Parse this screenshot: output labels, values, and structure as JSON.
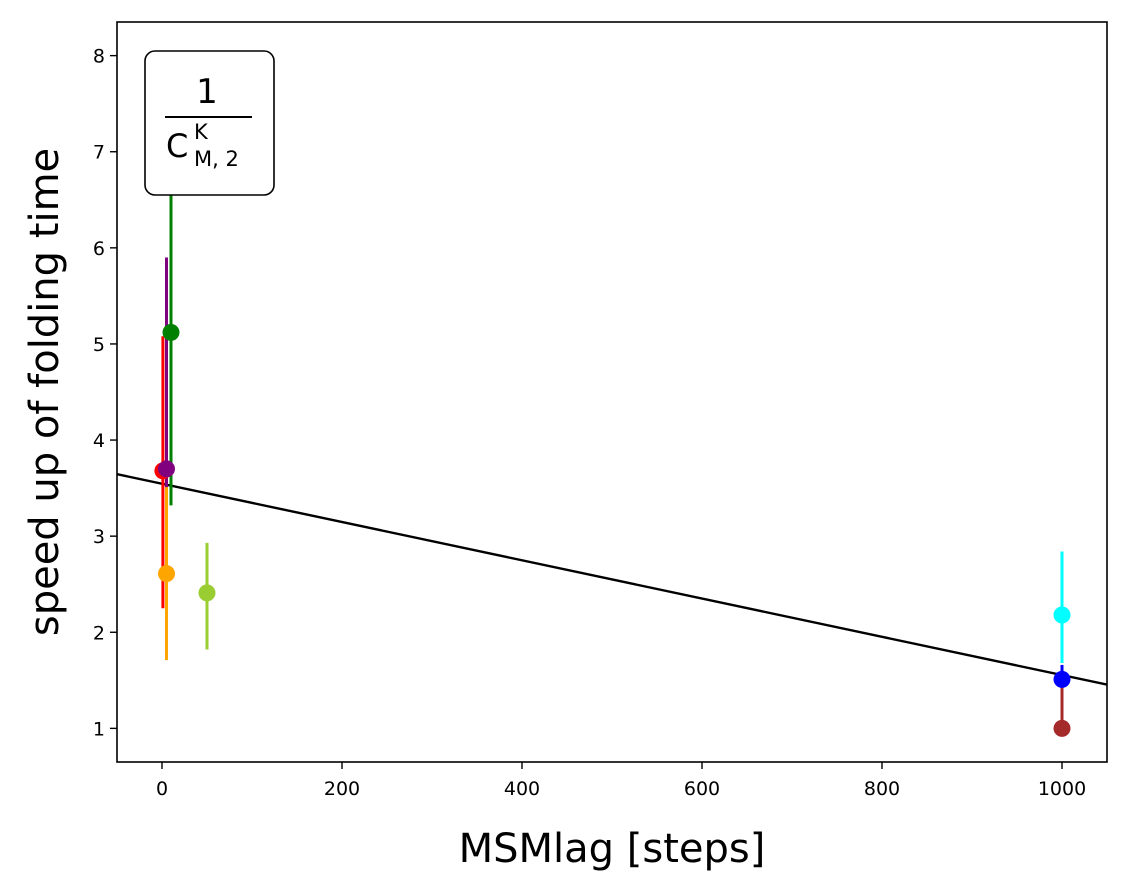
{
  "chart_data": {
    "type": "scatter",
    "xlabel": "MSMlag [steps]",
    "ylabel": "speed up of folding time",
    "xlim": [
      -50,
      1050
    ],
    "ylim": [
      0.65,
      8.35
    ],
    "xticks": [
      0,
      200,
      400,
      600,
      800,
      1000
    ],
    "yticks": [
      1,
      2,
      3,
      4,
      5,
      6,
      7,
      8
    ],
    "grid": false,
    "annotation": {
      "numerator": "1",
      "base": "C",
      "superscript": "K",
      "subscript": "M, 2",
      "placement": "top-left"
    },
    "points": [
      {
        "x": 1,
        "y": 3.68,
        "low": 2.25,
        "high": 5.08,
        "color": "#ff0000"
      },
      {
        "x": 5,
        "y": 3.7,
        "low": 2.28,
        "high": 5.9,
        "color": "#800080"
      },
      {
        "x": 10,
        "y": 5.12,
        "low": 3.32,
        "high": 6.75,
        "color": "#008000"
      },
      {
        "x": 5,
        "y": 2.61,
        "low": 1.71,
        "high": 3.51,
        "color": "#ffa500"
      },
      {
        "x": 50,
        "y": 2.41,
        "low": 1.82,
        "high": 2.93,
        "color": "#9acd32"
      },
      {
        "x": 1000,
        "y": 2.18,
        "low": 1.68,
        "high": 2.84,
        "color": "#00ffff"
      },
      {
        "x": 1000,
        "y": 1.51,
        "low": 1.35,
        "high": 1.66,
        "color": "#0000ff"
      },
      {
        "x": 1000,
        "y": 1.0,
        "low": 1.0,
        "high": 1.51,
        "color": "#a52a2a"
      }
    ],
    "fit_line": {
      "x": [
        -50,
        1050
      ],
      "y": [
        3.645,
        1.455
      ],
      "color": "#000000"
    }
  }
}
